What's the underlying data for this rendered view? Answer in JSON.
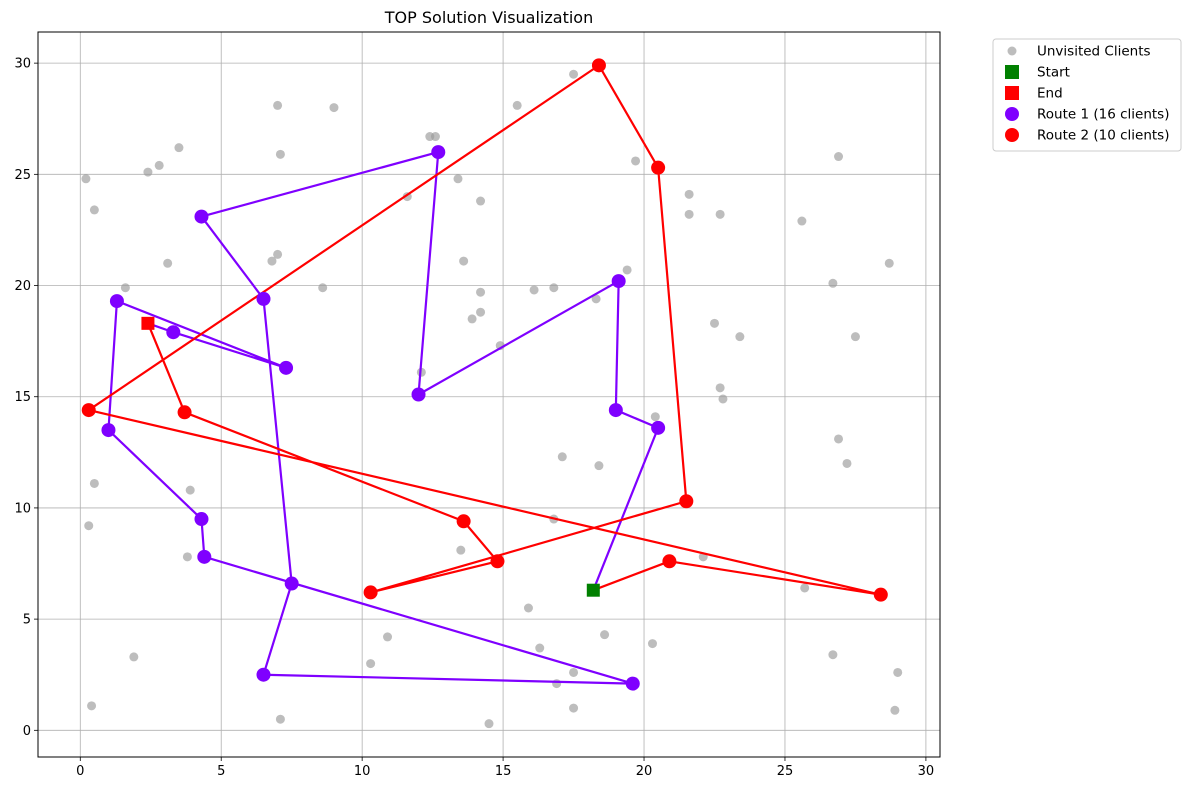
{
  "chart_data": {
    "type": "scatter",
    "title": "TOP Solution Visualization",
    "xlabel": "",
    "ylabel": "",
    "xlim": [
      -1.5,
      30.5
    ],
    "ylim": [
      -1.2,
      31.4
    ],
    "xticks": [
      0,
      5,
      10,
      15,
      20,
      25,
      30
    ],
    "yticks": [
      0,
      5,
      10,
      15,
      20,
      25,
      30
    ],
    "grid": true,
    "legend_position": "outside-top-right",
    "legend": [
      {
        "label": "Unvisited Clients",
        "marker": "circle",
        "color": "#999999"
      },
      {
        "label": "Start",
        "marker": "square",
        "color": "#008000"
      },
      {
        "label": "End",
        "marker": "square",
        "color": "#ff0000"
      },
      {
        "label": "Route 1 (16 clients)",
        "marker": "circle",
        "color": "#7f00ff"
      },
      {
        "label": "Route 2 (10 clients)",
        "marker": "circle",
        "color": "#ff0000"
      }
    ],
    "unvisited": [
      [
        0.2,
        24.8
      ],
      [
        0.5,
        23.4
      ],
      [
        2.4,
        25.1
      ],
      [
        2.8,
        25.4
      ],
      [
        3.5,
        26.2
      ],
      [
        7.0,
        28.1
      ],
      [
        9.0,
        28.0
      ],
      [
        7.1,
        25.9
      ],
      [
        12.4,
        26.7
      ],
      [
        12.6,
        26.7
      ],
      [
        13.4,
        24.8
      ],
      [
        14.2,
        23.8
      ],
      [
        11.6,
        24.0
      ],
      [
        15.5,
        28.1
      ],
      [
        17.5,
        29.5
      ],
      [
        19.7,
        25.6
      ],
      [
        21.6,
        24.1
      ],
      [
        21.6,
        23.2
      ],
      [
        22.7,
        23.2
      ],
      [
        25.6,
        22.9
      ],
      [
        26.9,
        25.8
      ],
      [
        28.7,
        21.0
      ],
      [
        26.7,
        20.1
      ],
      [
        27.5,
        17.7
      ],
      [
        22.5,
        18.3
      ],
      [
        23.4,
        17.7
      ],
      [
        19.4,
        20.7
      ],
      [
        18.3,
        19.4
      ],
      [
        16.8,
        19.9
      ],
      [
        16.1,
        19.8
      ],
      [
        14.2,
        19.7
      ],
      [
        14.2,
        18.8
      ],
      [
        13.9,
        18.5
      ],
      [
        14.9,
        17.3
      ],
      [
        13.6,
        21.1
      ],
      [
        7.0,
        21.4
      ],
      [
        6.8,
        21.1
      ],
      [
        3.1,
        21.0
      ],
      [
        1.6,
        19.9
      ],
      [
        8.6,
        19.9
      ],
      [
        12.1,
        16.1
      ],
      [
        22.7,
        15.4
      ],
      [
        22.8,
        14.9
      ],
      [
        20.4,
        14.1
      ],
      [
        26.9,
        13.1
      ],
      [
        27.2,
        12.0
      ],
      [
        17.1,
        12.3
      ],
      [
        18.4,
        11.9
      ],
      [
        0.5,
        11.1
      ],
      [
        3.9,
        10.8
      ],
      [
        0.3,
        9.2
      ],
      [
        16.8,
        9.5
      ],
      [
        3.8,
        7.8
      ],
      [
        13.5,
        8.1
      ],
      [
        22.1,
        7.8
      ],
      [
        25.7,
        6.4
      ],
      [
        15.9,
        5.5
      ],
      [
        10.9,
        4.2
      ],
      [
        10.3,
        3.0
      ],
      [
        16.3,
        3.7
      ],
      [
        18.6,
        4.3
      ],
      [
        20.3,
        3.9
      ],
      [
        26.7,
        3.4
      ],
      [
        29.0,
        2.6
      ],
      [
        17.5,
        2.6
      ],
      [
        16.9,
        2.1
      ],
      [
        17.5,
        1.0
      ],
      [
        14.5,
        0.3
      ],
      [
        7.1,
        0.5
      ],
      [
        1.9,
        3.3
      ],
      [
        0.4,
        1.1
      ],
      [
        28.9,
        0.9
      ]
    ],
    "start": [
      18.2,
      6.3
    ],
    "end": [
      2.4,
      18.3
    ],
    "series": [
      {
        "name": "Route 1 (16 clients)",
        "color": "#7f00ff",
        "path": [
          [
            18.2,
            6.3
          ],
          [
            20.5,
            13.6
          ],
          [
            19.0,
            14.4
          ],
          [
            19.1,
            20.2
          ],
          [
            12.0,
            15.1
          ],
          [
            12.7,
            26.0
          ],
          [
            4.3,
            23.1
          ],
          [
            6.5,
            19.4
          ],
          [
            7.5,
            6.6
          ],
          [
            6.5,
            2.5
          ],
          [
            19.6,
            2.1
          ],
          [
            4.4,
            7.8
          ],
          [
            4.3,
            9.5
          ],
          [
            1.0,
            13.5
          ],
          [
            1.3,
            19.3
          ],
          [
            7.3,
            16.3
          ],
          [
            3.3,
            17.9
          ],
          [
            2.4,
            18.3
          ]
        ]
      },
      {
        "name": "Route 2 (10 clients)",
        "color": "#ff0000",
        "path": [
          [
            18.2,
            6.3
          ],
          [
            20.9,
            7.6
          ],
          [
            28.4,
            6.1
          ],
          [
            0.3,
            14.4
          ],
          [
            18.4,
            29.9
          ],
          [
            20.5,
            25.3
          ],
          [
            21.5,
            10.3
          ],
          [
            10.3,
            6.2
          ],
          [
            14.8,
            7.6
          ],
          [
            13.6,
            9.4
          ],
          [
            3.7,
            14.3
          ],
          [
            2.4,
            18.3
          ]
        ]
      }
    ]
  }
}
